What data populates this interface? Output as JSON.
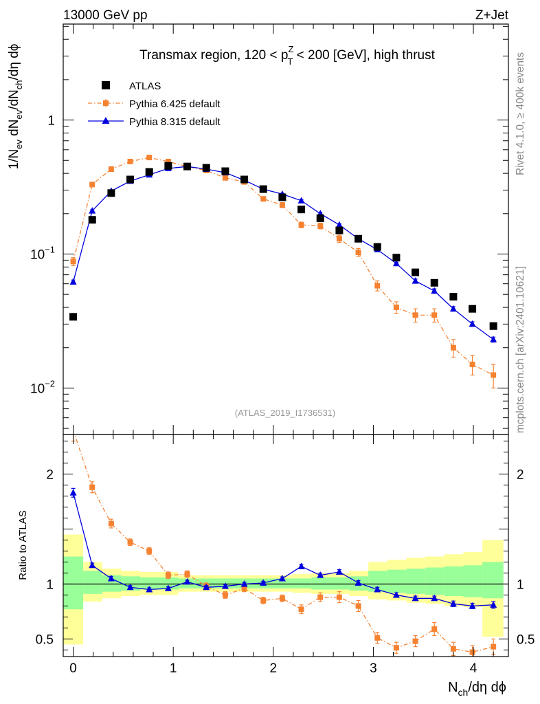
{
  "header": {
    "left": "13000 GeV pp",
    "right": "Z+Jet"
  },
  "side_text": {
    "rivet": "Rivet 4.1.0, ≥ 400k events",
    "mcplots": "mcplots.cern.ch [arXiv:2401.10621]"
  },
  "chart_data": {
    "type": "scatter",
    "title": "Transmax region, 120 < p_T^Z < 200 [GeV], high thrust",
    "title_parts": {
      "prefix": "Transmax region, 120 < p",
      "sup": "Z",
      "sub": "T",
      "suffix": " < 200 [GeV], high thrust"
    },
    "watermark": "(ATLAS_2019_I1736531)",
    "xlabel": "N_ch/dη dϕ",
    "xlabel_parts": {
      "main": "N",
      "sub": "ch",
      "rest": "/dη dϕ"
    },
    "ylabel": "1/N_ev dN_ev/dN_ch/dη dϕ",
    "ylabel_parts": {
      "a": "1/N",
      "a_sub": "ev",
      "b": " dN",
      "b_sub": "ev",
      "c": "/dN",
      "c_sub": "ch",
      "d": "/dη dϕ"
    },
    "ratio_ylabel": "Ratio to ATLAS",
    "xlim": [
      -0.1,
      4.35
    ],
    "ylim_log": [
      0.0045,
      5.2
    ],
    "ratio_ylim": [
      0.34,
      2.36
    ],
    "x_ticks": [
      0,
      1,
      2,
      3,
      4
    ],
    "y_ticks_main": [
      {
        "value": 0.01,
        "base": "10",
        "exp": "−2"
      },
      {
        "value": 0.1,
        "base": "10",
        "exp": "−1"
      },
      {
        "value": 1,
        "base": "1",
        "exp": ""
      }
    ],
    "y_ticks_ratio": [
      {
        "value": 0.5,
        "label": "0.5"
      },
      {
        "value": 1,
        "label": "1"
      },
      {
        "value": 2,
        "label": "2"
      }
    ],
    "x": [
      0.0,
      0.19,
      0.38,
      0.57,
      0.76,
      0.95,
      1.14,
      1.33,
      1.52,
      1.71,
      1.9,
      2.09,
      2.28,
      2.47,
      2.66,
      2.85,
      3.04,
      3.23,
      3.42,
      3.61,
      3.8,
      3.99,
      4.2
    ],
    "legend": [
      {
        "name": "ATLAS",
        "marker": "square",
        "color": "#000000"
      },
      {
        "name": "Pythia 6.425 default",
        "marker": "square-dashdot",
        "color": "#f58231"
      },
      {
        "name": "Pythia 8.315 default",
        "marker": "triangle-line",
        "color": "#0000dd"
      }
    ],
    "series": [
      {
        "name": "ATLAS",
        "values": [
          0.034,
          0.18,
          0.285,
          0.36,
          0.41,
          0.455,
          0.45,
          0.44,
          0.415,
          0.36,
          0.305,
          0.265,
          0.215,
          0.185,
          0.15,
          0.13,
          0.113,
          0.094,
          0.073,
          0.061,
          0.048,
          0.039,
          0.029
        ]
      },
      {
        "name": "Pythia 6.425 default",
        "values": [
          0.088,
          0.33,
          0.43,
          0.49,
          0.525,
          0.49,
          0.45,
          0.42,
          0.37,
          0.345,
          0.258,
          0.232,
          0.165,
          0.162,
          0.13,
          0.103,
          0.058,
          0.04,
          0.035,
          0.035,
          0.02,
          0.015,
          0.0125
        ],
        "errors": [
          0.006,
          0.012,
          0.012,
          0.012,
          0.012,
          0.012,
          0.012,
          0.012,
          0.012,
          0.012,
          0.01,
          0.01,
          0.008,
          0.008,
          0.008,
          0.007,
          0.005,
          0.004,
          0.004,
          0.004,
          0.003,
          0.0025,
          0.0025
        ]
      },
      {
        "name": "Pythia 8.315 default",
        "values": [
          0.062,
          0.21,
          0.295,
          0.35,
          0.39,
          0.435,
          0.45,
          0.43,
          0.405,
          0.355,
          0.305,
          0.28,
          0.25,
          0.2,
          0.165,
          0.13,
          0.108,
          0.085,
          0.063,
          0.053,
          0.039,
          0.03,
          0.023
        ],
        "errors": [
          0.002,
          0.004,
          0.005,
          0.005,
          0.005,
          0.006,
          0.006,
          0.006,
          0.005,
          0.005,
          0.005,
          0.004,
          0.004,
          0.004,
          0.003,
          0.003,
          0.003,
          0.002,
          0.002,
          0.002,
          0.0015,
          0.0012,
          0.001
        ]
      }
    ],
    "ratios": [
      {
        "name": "Pythia 6.425 default",
        "values": [
          2.4,
          1.88,
          1.55,
          1.38,
          1.3,
          1.08,
          1.09,
          0.98,
          0.9,
          0.96,
          0.85,
          0.87,
          0.77,
          0.88,
          0.88,
          0.8,
          0.51,
          0.42,
          0.48,
          0.59,
          0.41,
          0.38,
          0.43
        ],
        "errors": [
          0.1,
          0.05,
          0.04,
          0.03,
          0.03,
          0.03,
          0.03,
          0.03,
          0.03,
          0.03,
          0.03,
          0.03,
          0.04,
          0.04,
          0.05,
          0.05,
          0.05,
          0.05,
          0.05,
          0.06,
          0.06,
          0.06,
          0.07
        ]
      },
      {
        "name": "Pythia 8.315 default",
        "values": [
          1.83,
          1.17,
          1.05,
          0.97,
          0.95,
          0.96,
          1.02,
          0.97,
          0.98,
          1.0,
          1.01,
          1.05,
          1.16,
          1.08,
          1.11,
          1.01,
          0.95,
          0.9,
          0.87,
          0.87,
          0.82,
          0.8,
          0.81
        ],
        "errors": [
          0.04,
          0.02,
          0.02,
          0.015,
          0.015,
          0.015,
          0.015,
          0.015,
          0.015,
          0.015,
          0.015,
          0.015,
          0.02,
          0.02,
          0.02,
          0.02,
          0.02,
          0.02,
          0.02,
          0.02,
          0.025,
          0.025,
          0.03
        ]
      }
    ],
    "bands": {
      "bin_edges": [
        -0.1,
        0.1,
        0.29,
        0.48,
        0.67,
        0.86,
        1.05,
        1.24,
        1.43,
        1.62,
        1.81,
        2.0,
        2.19,
        2.38,
        2.57,
        2.76,
        2.95,
        3.14,
        3.33,
        3.52,
        3.71,
        3.9,
        4.09,
        4.3
      ],
      "green": [
        [
          0.77,
          1.25
        ],
        [
          0.91,
          1.12
        ],
        [
          0.93,
          1.08
        ],
        [
          0.94,
          1.07
        ],
        [
          0.95,
          1.06
        ],
        [
          0.95,
          1.06
        ],
        [
          0.96,
          1.05
        ],
        [
          0.96,
          1.05
        ],
        [
          0.96,
          1.05
        ],
        [
          0.96,
          1.05
        ],
        [
          0.96,
          1.05
        ],
        [
          0.96,
          1.05
        ],
        [
          0.96,
          1.05
        ],
        [
          0.95,
          1.06
        ],
        [
          0.95,
          1.06
        ],
        [
          0.94,
          1.07
        ],
        [
          0.93,
          1.12
        ],
        [
          0.92,
          1.13
        ],
        [
          0.91,
          1.14
        ],
        [
          0.9,
          1.15
        ],
        [
          0.89,
          1.16
        ],
        [
          0.88,
          1.17
        ],
        [
          0.87,
          1.2
        ]
      ],
      "yellow": [
        [
          0.45,
          1.45
        ],
        [
          0.84,
          1.2
        ],
        [
          0.87,
          1.14
        ],
        [
          0.89,
          1.12
        ],
        [
          0.9,
          1.11
        ],
        [
          0.9,
          1.11
        ],
        [
          0.93,
          1.08
        ],
        [
          0.93,
          1.08
        ],
        [
          0.93,
          1.08
        ],
        [
          0.93,
          1.08
        ],
        [
          0.93,
          1.08
        ],
        [
          0.93,
          1.08
        ],
        [
          0.92,
          1.09
        ],
        [
          0.91,
          1.1
        ],
        [
          0.91,
          1.1
        ],
        [
          0.89,
          1.12
        ],
        [
          0.86,
          1.2
        ],
        [
          0.85,
          1.22
        ],
        [
          0.83,
          1.24
        ],
        [
          0.82,
          1.25
        ],
        [
          0.8,
          1.27
        ],
        [
          0.79,
          1.29
        ],
        [
          0.52,
          1.4
        ]
      ]
    }
  }
}
